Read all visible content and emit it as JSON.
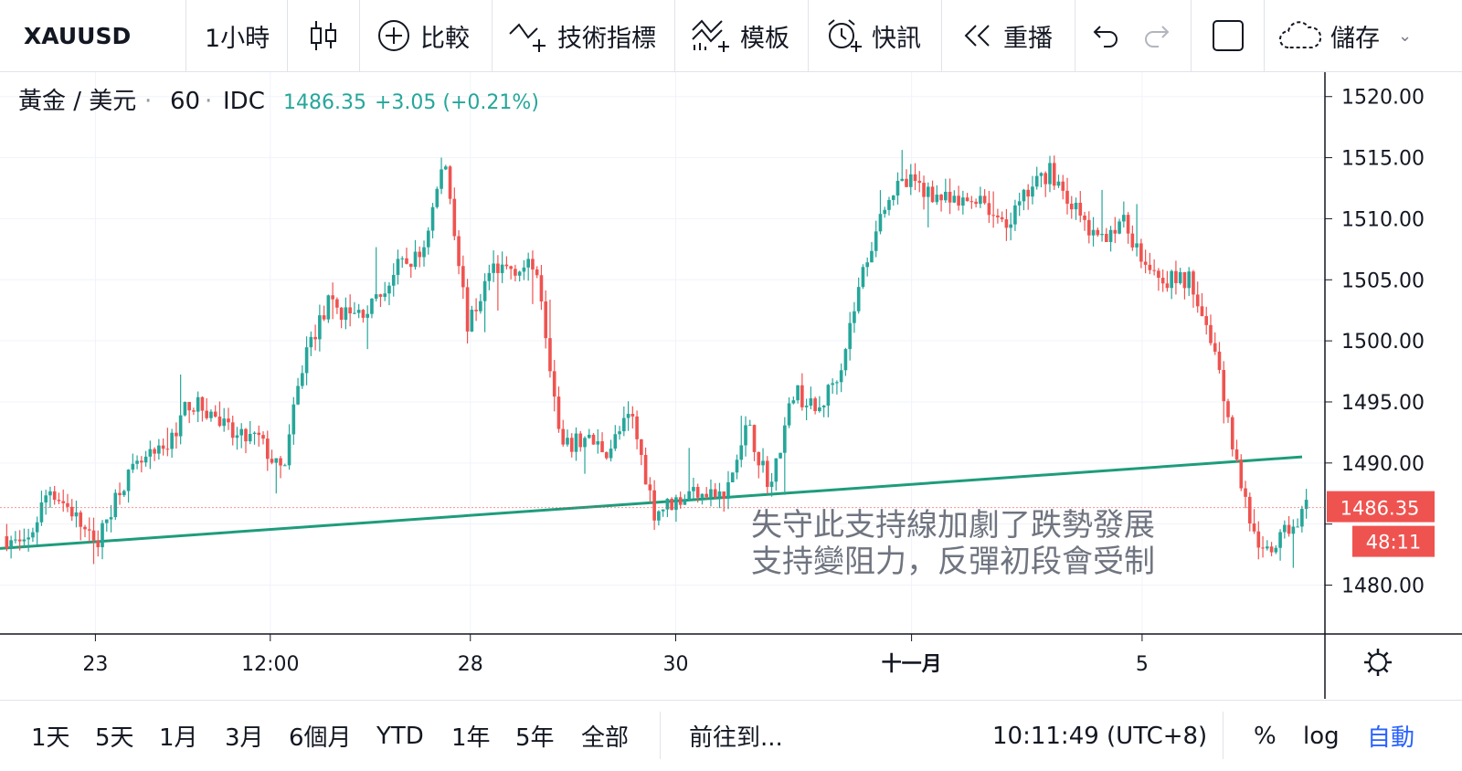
{
  "toolbar": {
    "symbol": "XAUUSD",
    "interval": "1小時",
    "compare_label": "比較",
    "indicators_label": "技術指標",
    "templates_label": "模板",
    "alerts_label": "快訊",
    "replay_label": "重播",
    "save_label": "儲存"
  },
  "legend": {
    "name": "黃金 / 美元",
    "interval": "60",
    "source": "IDC",
    "price": "1486.35",
    "change": "+3.05 (+0.21%)"
  },
  "annotation": {
    "line1": "失守此支持線加劇了跌勢發展",
    "line2": "支持變阻力，反彈初段會受制"
  },
  "bottom": {
    "ranges": [
      "1天",
      "5天",
      "1月",
      "3月",
      "6個月",
      "YTD",
      "1年",
      "5年",
      "全部"
    ],
    "goto": "前往到...",
    "time": "10:11:49 (UTC+8)",
    "percent": "%",
    "log": "log",
    "auto": "自動"
  },
  "colors": {
    "up": "#26a69a",
    "down": "#ef5350",
    "trendline": "#1e9c7c",
    "auto_active": "#2962ff"
  },
  "chart_data": {
    "type": "candlestick",
    "title": "黃金 / 美元 · 60 · IDC",
    "ylim": [
      1476,
      1522
    ],
    "y_ticks": [
      1480,
      1485,
      1490,
      1495,
      1500,
      1505,
      1510,
      1515,
      1520
    ],
    "y_tick_labels": [
      "1480.00",
      "",
      "1490.00",
      "1495.00",
      "1500.00",
      "1505.00",
      "1510.00",
      "1515.00",
      "1520.00"
    ],
    "x_labels": [
      "23",
      "12:00",
      "28",
      "30",
      "十一月",
      "5"
    ],
    "last_price": 1486.35,
    "last_price_label": "1486.35",
    "countdown_label": "48:11",
    "price_path": [
      1484,
      1483,
      1488,
      1486,
      1483,
      1488,
      1490,
      1491,
      1495,
      1494,
      1492,
      1492,
      1489,
      1499,
      1503,
      1502,
      1503,
      1506,
      1507,
      1515,
      1501,
      1506,
      1506,
      1506,
      1491,
      1492,
      1491,
      1494,
      1486,
      1487,
      1488,
      1487,
      1493,
      1488,
      1496,
      1494,
      1498,
      1506,
      1512,
      1513,
      1512,
      1511,
      1512,
      1509,
      1512,
      1514,
      1511,
      1508,
      1510,
      1507,
      1505,
      1505,
      1500,
      1490,
      1482,
      1484,
      1486.35
    ],
    "trendline": {
      "start": 1483,
      "end": 1490.5
    }
  }
}
